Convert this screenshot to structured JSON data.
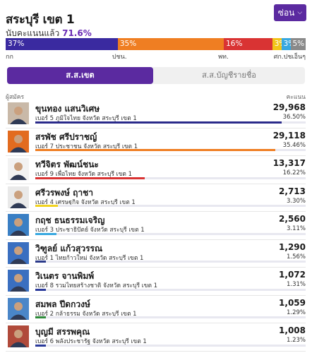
{
  "header": {
    "title": "สระบุรี เขต 1",
    "counted_label": "นับคะแนนแล้ว",
    "counted_value": "71.6%",
    "hide_label": "ซ่อน"
  },
  "party_bar": {
    "segments": [
      {
        "label": "37%",
        "party": "กก",
        "color": "#3a2aa0",
        "share": 37
      },
      {
        "label": "35%",
        "party": "ปชน.",
        "color": "#ef7e22",
        "share": 35
      },
      {
        "label": "16%",
        "party": "พท.",
        "color": "#d93333",
        "share": 16
      },
      {
        "label": "3%",
        "party": "",
        "color": "#f2c419",
        "share": 3
      },
      {
        "label": "3%",
        "party": "",
        "color": "#38a8e0",
        "share": 3
      },
      {
        "label": "5%",
        "party": "",
        "color": "#8a8a8a",
        "share": 5
      }
    ],
    "label_right": "ศก.ปชเอ็นๆ"
  },
  "tabs": {
    "district": "ส.ส.เขต",
    "partylist": "ส.ส.บัญชีรายชื่อ"
  },
  "columns": {
    "candidate": "ผู้สมัคร",
    "votes": "คะแนน"
  },
  "candidates": [
    {
      "name": "ขุนทอง แสนวิเศษ",
      "number": "เบอร์ 5",
      "party": "ภูมิใจไทย จังหวัด สระบุรี เขต 1",
      "votes": "29,968",
      "pct": "36.50%",
      "share": 36.5,
      "color": "#2a2a8a",
      "avatar": "#c9b9a8"
    },
    {
      "name": "สรพัช ศรีปราชญ์",
      "number": "เบอร์ 7",
      "party": "ประชาชน จังหวัด สระบุรี เขต 1",
      "votes": "29,118",
      "pct": "35.46%",
      "share": 35.46,
      "color": "#ef7e22",
      "avatar": "#e26b1f"
    },
    {
      "name": "ทวีจิตร พัฒน์ชนะ",
      "number": "เบอร์ 9",
      "party": "เพื่อไทย จังหวัด สระบุรี เขต 1",
      "votes": "13,317",
      "pct": "16.22%",
      "share": 16.22,
      "color": "#d93333",
      "avatar": "#f2f2f2"
    },
    {
      "name": "ศรีวรพงษ์ ฤาชา",
      "number": "เบอร์ 4",
      "party": "เศรษฐกิจ จังหวัด สระบุรี เขต 1",
      "votes": "2,713",
      "pct": "3.30%",
      "share": 3.3,
      "color": "#f2d31f",
      "avatar": "#e9e9e9"
    },
    {
      "name": "กฤช ธนธรรมเจริญ",
      "number": "เบอร์ 3",
      "party": "ประชาธิปัตย์ จังหวัด สระบุรี เขต 1",
      "votes": "2,560",
      "pct": "3.11%",
      "share": 3.11,
      "color": "#38a8e0",
      "avatar": "#3a7fc4"
    },
    {
      "name": "วิฑูลย์ แก้วสุวรรณ",
      "number": "เบอร์ 1",
      "party": "ไทยก้าวใหม่ จังหวัด สระบุรี เขต 1",
      "votes": "1,290",
      "pct": "1.56%",
      "share": 1.56,
      "color": "#2b3a8a",
      "avatar": "#3a6fc0"
    },
    {
      "name": "วิเนตร จานพิมพ์",
      "number": "เบอร์ 8",
      "party": "รวมไทยสร้างชาติ จังหวัด สระบุรี เขต 1",
      "votes": "1,072",
      "pct": "1.31%",
      "share": 1.31,
      "color": "#2b3a9a",
      "avatar": "#3a6fc0"
    },
    {
      "name": "สมพล ปีดกวงษ์",
      "number": "เบอร์ 2",
      "party": "กล้าธรรม จังหวัด สระบุรี เขต 1",
      "votes": "1,059",
      "pct": "1.29%",
      "share": 1.29,
      "color": "#2e8a3a",
      "avatar": "#4a86c8"
    },
    {
      "name": "บุญมี สรรพคุณ",
      "number": "เบอร์ 6",
      "party": "พลังประชารัฐ จังหวัด สระบุรี เขต 1",
      "votes": "1,008",
      "pct": "1.23%",
      "share": 1.23,
      "color": "#2b3a9a",
      "avatar": "#b04a3a"
    }
  ]
}
